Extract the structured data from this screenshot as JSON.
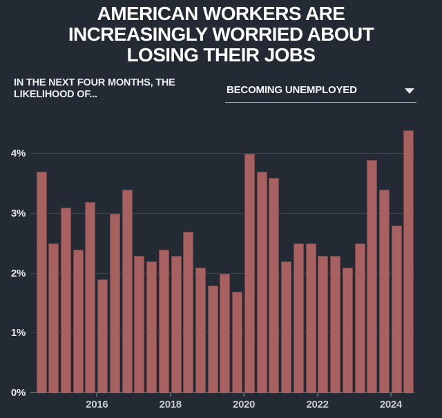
{
  "header": {
    "title_lines": [
      "AMERICAN WORKERS ARE",
      "INCREASINGLY WORRIED ABOUT",
      "LOSING THEIR JOBS"
    ],
    "subtitle_lines": [
      "IN THE NEXT FOUR MONTHS, THE",
      "LIKELIHOOD OF..."
    ],
    "dropdown": {
      "selected": "BECOMING UNEMPLOYED",
      "icon": "caret-down-icon"
    }
  },
  "colors": {
    "background": "#232a33",
    "bar": "#a86161",
    "gridline": "#3d444d",
    "axis_line": "#596069",
    "title_text": "#ffffff",
    "y_label_text": "#e6e8ea",
    "x_label_text": "#c9ccd1",
    "dropdown_underline": "#a3a8b0"
  },
  "chart_data": {
    "type": "bar",
    "title": "AMERICAN WORKERS ARE INCREASINGLY WORRIED ABOUT LOSING THEIR JOBS",
    "subtitle": "IN THE NEXT FOUR MONTHS, THE LIKELIHOOD OF... BECOMING UNEMPLOYED",
    "xlabel": "",
    "ylabel": "",
    "unit": "%",
    "ylim": [
      0,
      4.46
    ],
    "grid": true,
    "y_ticks": [
      {
        "value": 0,
        "label": "0%"
      },
      {
        "value": 1,
        "label": "1%"
      },
      {
        "value": 2,
        "label": "2%"
      },
      {
        "value": 3,
        "label": "3%"
      },
      {
        "value": 4,
        "label": "4%"
      }
    ],
    "x_ticks": [
      "2016",
      "2018",
      "2020",
      "2022",
      "2024"
    ],
    "points": [
      {
        "year": 2014,
        "value": 3.7
      },
      {
        "year": 2014,
        "value": 2.5
      },
      {
        "year": 2015,
        "value": 3.1
      },
      {
        "year": 2015,
        "value": 2.4
      },
      {
        "year": 2015,
        "value": 3.2
      },
      {
        "year": 2016,
        "value": 1.9
      },
      {
        "year": 2016,
        "value": 3.0
      },
      {
        "year": 2016,
        "value": 3.4
      },
      {
        "year": 2017,
        "value": 2.3
      },
      {
        "year": 2017,
        "value": 2.2
      },
      {
        "year": 2017,
        "value": 2.4
      },
      {
        "year": 2018,
        "value": 2.3
      },
      {
        "year": 2018,
        "value": 2.7
      },
      {
        "year": 2018,
        "value": 2.1
      },
      {
        "year": 2019,
        "value": 1.8
      },
      {
        "year": 2019,
        "value": 2.0
      },
      {
        "year": 2019,
        "value": 1.7
      },
      {
        "year": 2020,
        "value": 4.0
      },
      {
        "year": 2020,
        "value": 3.7
      },
      {
        "year": 2020,
        "value": 3.6
      },
      {
        "year": 2021,
        "value": 2.2
      },
      {
        "year": 2021,
        "value": 2.5
      },
      {
        "year": 2021,
        "value": 2.5
      },
      {
        "year": 2022,
        "value": 2.3
      },
      {
        "year": 2022,
        "value": 2.3
      },
      {
        "year": 2022,
        "value": 2.1
      },
      {
        "year": 2023,
        "value": 2.5
      },
      {
        "year": 2023,
        "value": 3.9
      },
      {
        "year": 2023,
        "value": 3.4
      },
      {
        "year": 2024,
        "value": 2.8
      },
      {
        "year": 2024,
        "value": 4.4
      }
    ]
  }
}
